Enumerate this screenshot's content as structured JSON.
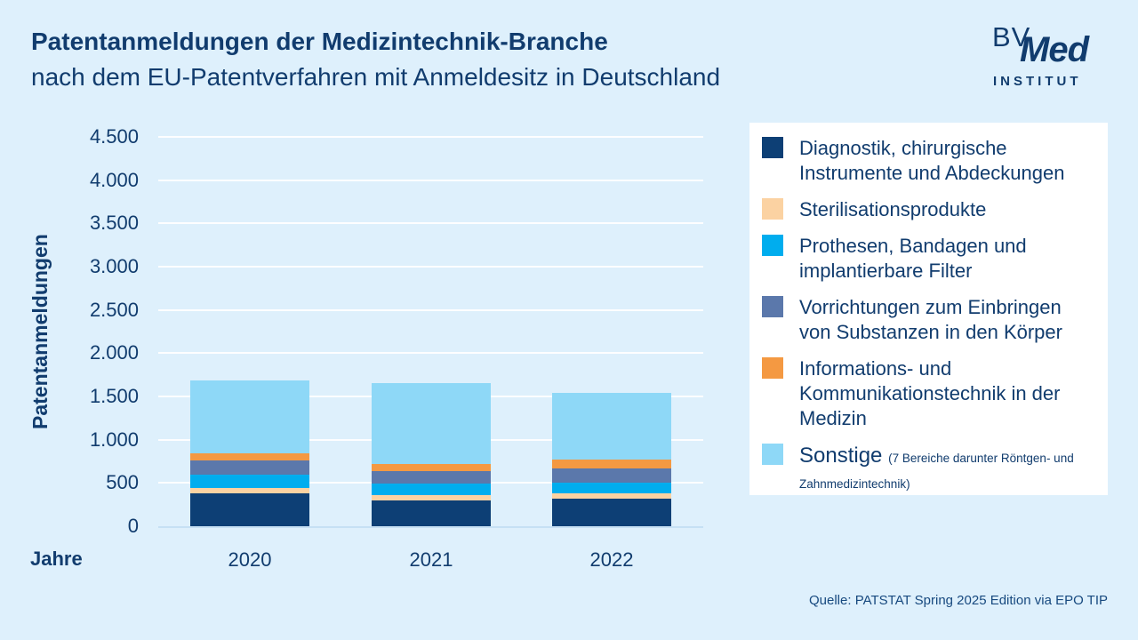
{
  "page": {
    "background": "#def0fc",
    "text_color": "#113c6e"
  },
  "header": {
    "title": "Patentanmeldungen der Medizintechnik-Branche",
    "subtitle": "nach dem EU-Patentverfahren mit Anmeldesitz in Deutschland",
    "logo": {
      "bv": "BV",
      "med": "Med",
      "institut": "INSTITUT"
    }
  },
  "chart_data": {
    "type": "bar",
    "stacked": true,
    "title": "Patentanmeldungen der Medizintechnik-Branche nach dem EU-Patentverfahren mit Anmeldesitz in Deutschland",
    "xlabel": "Jahre",
    "ylabel": "Patentanmeldungen",
    "categories": [
      "2020",
      "2021",
      "2022"
    ],
    "series": [
      {
        "name": "Diagnostik, chirurgische Instrumente und Abdeckungen",
        "color": "#0d3f75",
        "values": [
          385,
          300,
          320
        ]
      },
      {
        "name": "Sterilisationsprodukte",
        "color": "#fbd2a2",
        "values": [
          55,
          60,
          60
        ]
      },
      {
        "name": "Prothesen, Bandagen und implantierbare Filter",
        "color": "#00adee",
        "values": [
          155,
          135,
          120
        ]
      },
      {
        "name": "Vorrichtungen zum Einbringen von Substanzen in den Körper",
        "color": "#5b78ab",
        "values": [
          170,
          140,
          170
        ]
      },
      {
        "name": "Informations- und Kommunikationstechnik in der Medizin",
        "color": "#f49942",
        "values": [
          80,
          90,
          100
        ]
      },
      {
        "name": "Sonstige",
        "suffix": "(7 Bereiche darunter Röntgen- und Zahnmedizintechnik)",
        "color": "#8ed8f7",
        "values": [
          835,
          935,
          770
        ]
      }
    ],
    "ylim": [
      0,
      4500
    ],
    "yticks": [
      {
        "value": 0,
        "label": "0"
      },
      {
        "value": 500,
        "label": "500"
      },
      {
        "value": 1000,
        "label": "1.000"
      },
      {
        "value": 1500,
        "label": "1.500"
      },
      {
        "value": 2000,
        "label": "2.000"
      },
      {
        "value": 2500,
        "label": "2.500"
      },
      {
        "value": 3000,
        "label": "3.000"
      },
      {
        "value": 3500,
        "label": "3.500"
      },
      {
        "value": 4000,
        "label": "4.000"
      },
      {
        "value": 4500,
        "label": "4.500"
      }
    ],
    "grid": true,
    "legend_position": "right"
  },
  "footer": {
    "source": "Quelle: PATSTAT Spring 2025 Edition via EPO TIP"
  }
}
